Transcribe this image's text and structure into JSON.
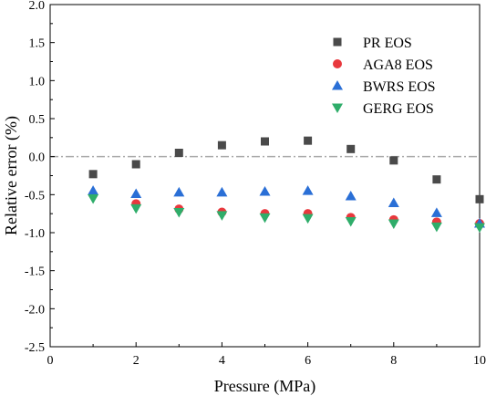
{
  "chart_data": {
    "type": "scatter",
    "xlabel": "Pressure (MPa)",
    "ylabel": "Relative error (%)",
    "xlim": [
      0,
      10
    ],
    "ylim": [
      -2.5,
      2.0
    ],
    "x_ticks": [
      0,
      2,
      4,
      6,
      8,
      10
    ],
    "y_ticks": [
      2.0,
      1.5,
      1.0,
      0.5,
      0.0,
      -0.5,
      -1.0,
      -1.5,
      -2.0,
      -2.5
    ],
    "x_tick_labels": [
      "0",
      "2",
      "4",
      "6",
      "8",
      "10"
    ],
    "y_tick_labels": [
      "2.0",
      "1.5",
      "1.0",
      "0.5",
      "0.0",
      "-0.5",
      "-1.0",
      "-1.5",
      "-2.0",
      "-2.5"
    ],
    "reference_line": {
      "y": 0.0,
      "style": "dash-dot",
      "color": "#aaaaaa"
    },
    "legend_position": "top-right",
    "grid": false,
    "series": [
      {
        "name": "PR EOS",
        "marker": "square",
        "color": "#4a4a4a",
        "x": [
          1,
          2,
          3,
          4,
          5,
          6,
          7,
          8,
          9,
          10
        ],
        "y": [
          -0.23,
          -0.1,
          0.05,
          0.15,
          0.2,
          0.21,
          0.1,
          -0.05,
          -0.3,
          -0.56
        ]
      },
      {
        "name": "AGA8 EOS",
        "marker": "circle",
        "color": "#e8383d",
        "x": [
          1,
          2,
          3,
          4,
          5,
          6,
          7,
          8,
          9,
          10
        ],
        "y": [
          -0.5,
          -0.62,
          -0.69,
          -0.73,
          -0.75,
          -0.75,
          -0.8,
          -0.83,
          -0.86,
          -0.88
        ]
      },
      {
        "name": "BWRS EOS",
        "marker": "triangle-up",
        "color": "#2a6fd6",
        "x": [
          1,
          2,
          3,
          4,
          5,
          6,
          7,
          8,
          9,
          10
        ],
        "y": [
          -0.45,
          -0.49,
          -0.47,
          -0.47,
          -0.46,
          -0.45,
          -0.52,
          -0.61,
          -0.74,
          -0.88
        ]
      },
      {
        "name": "GERG EOS",
        "marker": "triangle-down",
        "color": "#2fad6a",
        "x": [
          1,
          2,
          3,
          4,
          5,
          6,
          7,
          8,
          9,
          10
        ],
        "y": [
          -0.55,
          -0.68,
          -0.73,
          -0.77,
          -0.8,
          -0.81,
          -0.85,
          -0.88,
          -0.92,
          -0.93
        ]
      }
    ]
  }
}
